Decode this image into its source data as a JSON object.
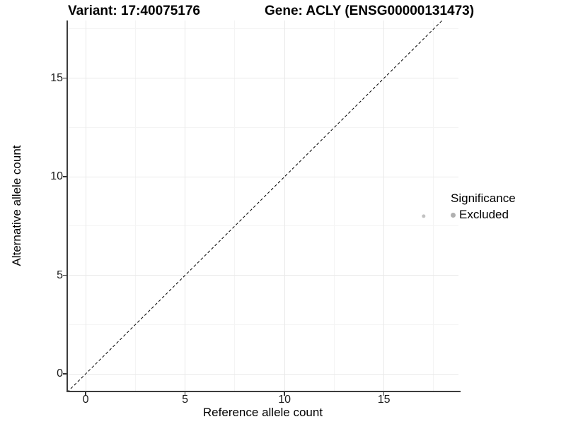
{
  "header": {
    "variant_title": "Variant: 17:40075176",
    "gene_title": "Gene: ACLY (ENSG00000131473)"
  },
  "chart_data": {
    "type": "scatter",
    "xlabel": "Reference allele count",
    "ylabel": "Alternative allele count",
    "xlim": [
      -0.93,
      18.75
    ],
    "ylim": [
      -0.86,
      17.93
    ],
    "x_ticks": [
      0,
      5,
      10,
      15
    ],
    "y_ticks": [
      0,
      5,
      10,
      15
    ],
    "x_minor_ticks": [
      2.5,
      7.5,
      12.5,
      17.5
    ],
    "y_minor_ticks": [
      2.5,
      7.5,
      12.5,
      17.5
    ],
    "grid": "major and minor gridlines, very light grey on white",
    "points": [
      {
        "x": 17,
        "y": 8,
        "series": "Excluded",
        "color": "#c2c2c2",
        "radius": 2.5
      }
    ],
    "abline": {
      "slope": 1,
      "intercept": 0,
      "linetype": "dashed",
      "color": "#000000",
      "width": 1
    },
    "legend": {
      "title": "Significance",
      "position": "right",
      "entries": [
        {
          "label": "Excluded",
          "color": "#b0b0b0"
        }
      ]
    }
  },
  "colors": {
    "background": "#ffffff",
    "axis_line": "#3c3c3c",
    "tick_label": "#1a1a1a",
    "grid_major": "#e9e9e9",
    "grid_minor": "#f4f4f4"
  }
}
